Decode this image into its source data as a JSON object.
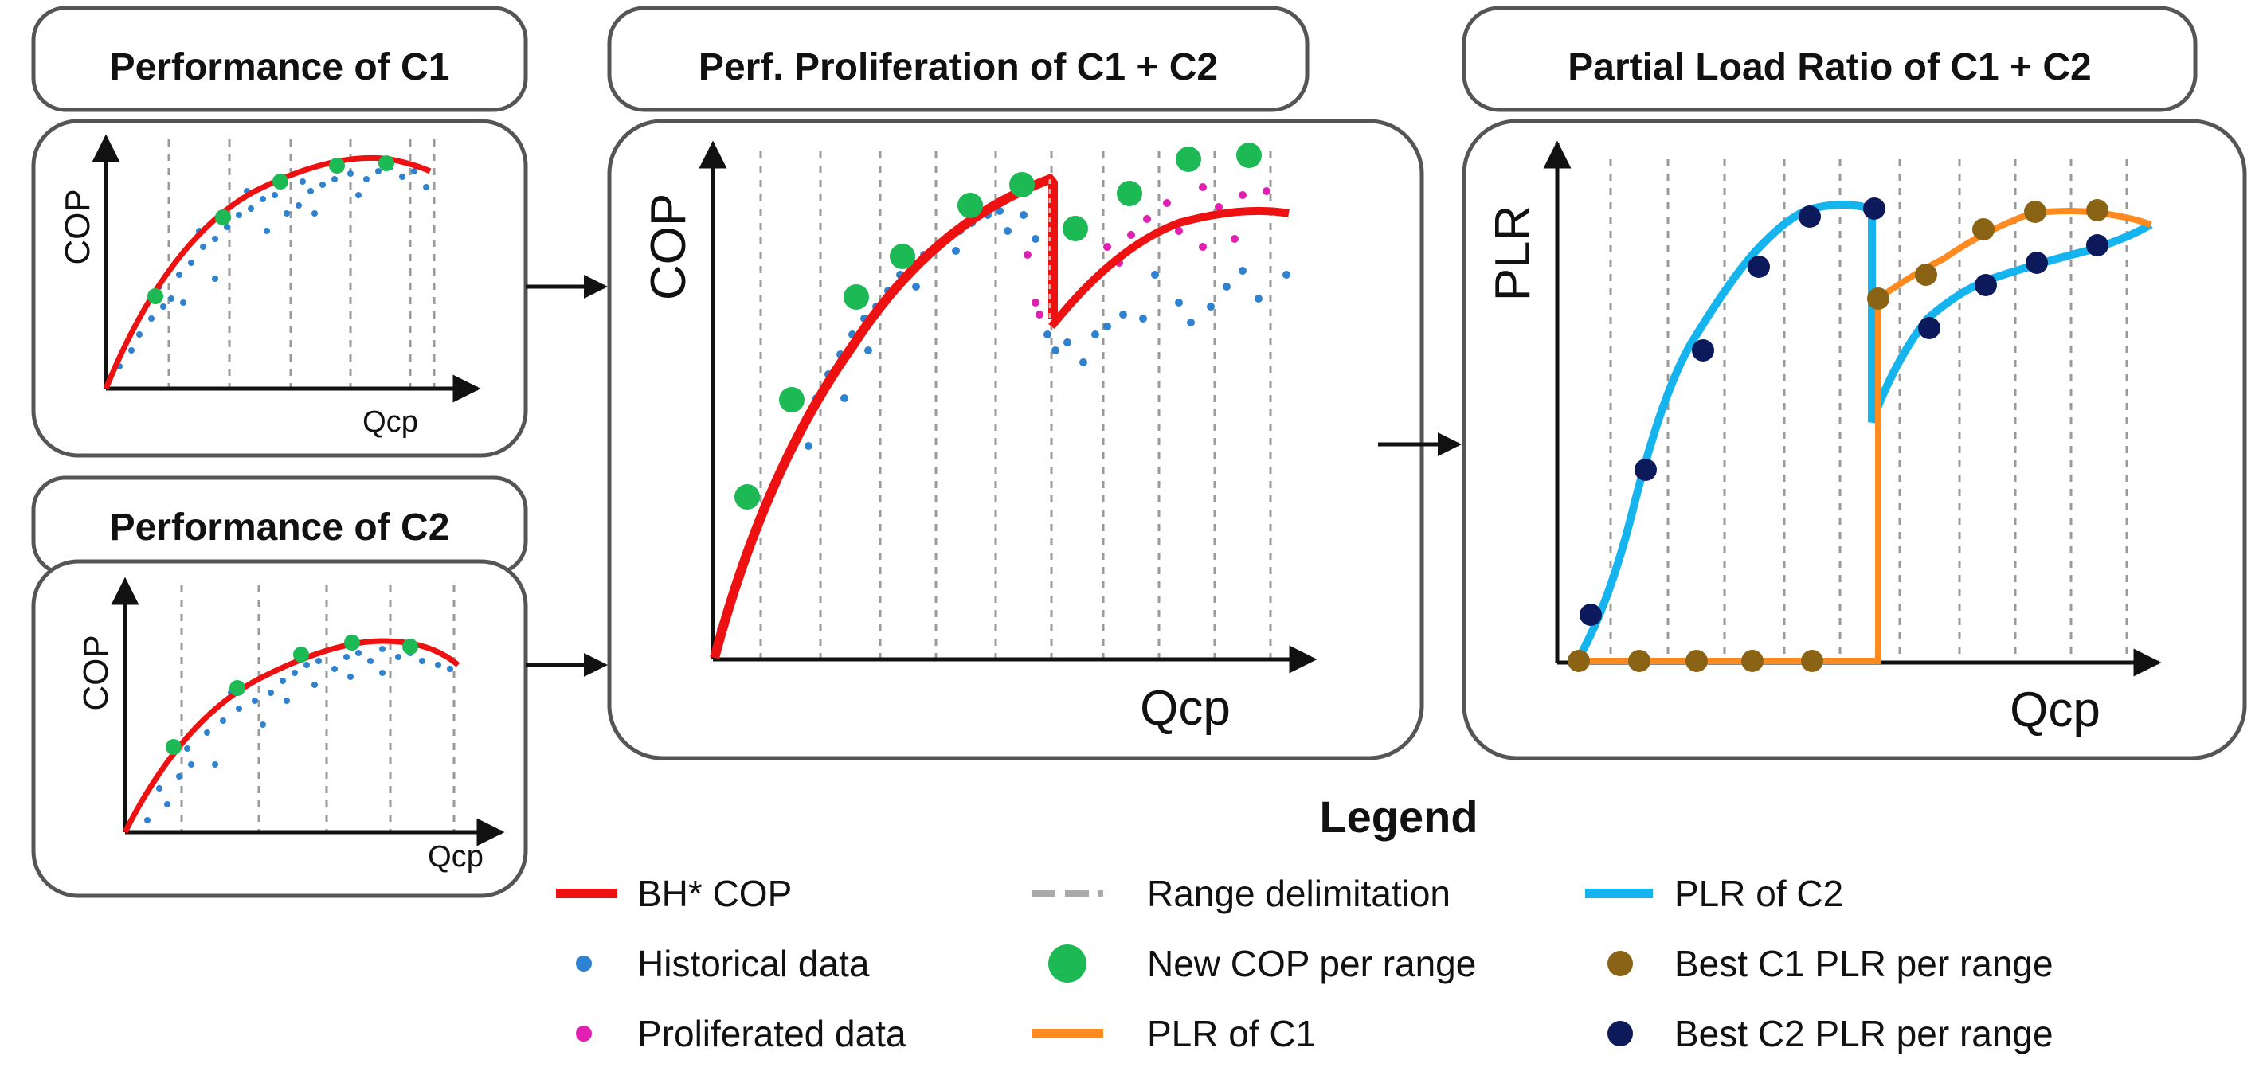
{
  "panels": {
    "c1": {
      "title": "Performance of C1",
      "ylabel": "COP",
      "xlabel": "Qcp"
    },
    "c2": {
      "title": "Performance of C2",
      "ylabel": "COP",
      "xlabel": "Qcp"
    },
    "prolif": {
      "title": "Perf. Proliferation of C1 + C2",
      "ylabel": "COP",
      "xlabel": "Qcp"
    },
    "plr": {
      "title": "Partial Load Ratio of C1 + C2",
      "ylabel": "PLR",
      "xlabel": "Qcp"
    }
  },
  "legend": {
    "title": "Legend",
    "items": [
      {
        "key": "bh_cop",
        "label": "BH* COP"
      },
      {
        "key": "range",
        "label": "Range delimitation"
      },
      {
        "key": "plr_c2",
        "label": "PLR of C2"
      },
      {
        "key": "historical",
        "label": "Historical data"
      },
      {
        "key": "new_cop",
        "label": "New COP per range"
      },
      {
        "key": "best_c1",
        "label": "Best C1 PLR per range"
      },
      {
        "key": "proliferated",
        "label": "Proliferated data"
      },
      {
        "key": "plr_c1",
        "label": "PLR of C1"
      },
      {
        "key": "best_c2",
        "label": "Best C2 PLR per range"
      }
    ]
  },
  "colors": {
    "red": "#ee1111",
    "blue_dot": "#2f82d0",
    "green": "#1db954",
    "magenta": "#e020b0",
    "orange": "#ff8a1f",
    "cyan": "#16b4ee",
    "brown": "#8a6414",
    "navy": "#0c1a5c",
    "grid": "#9a9a9a"
  }
}
